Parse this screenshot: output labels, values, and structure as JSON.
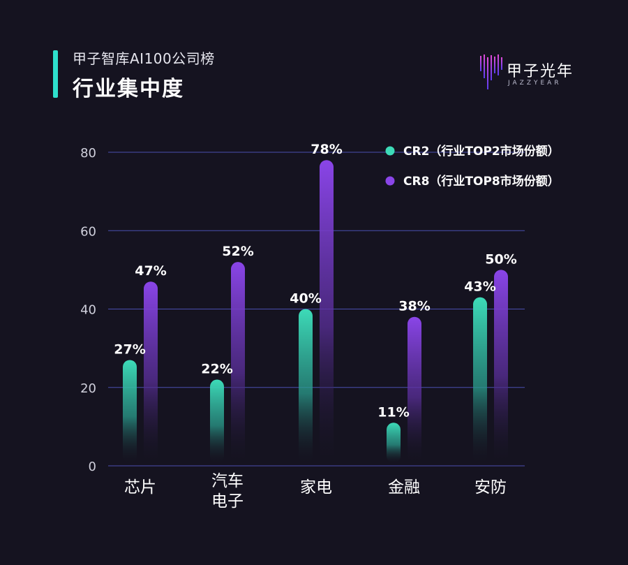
{
  "header": {
    "subtitle": "甲子智库AI100公司榜",
    "title": "行业集中度"
  },
  "logo": {
    "name": "甲子光年",
    "sub": "JAZZYEAR"
  },
  "colors": {
    "background": "#151320",
    "accent": "#2ee0cc",
    "cr2": "#3ddbb8",
    "cr8": "#8a45e8",
    "grid": "#4a4fb0"
  },
  "chart_data": {
    "type": "bar",
    "categories": [
      [
        "芯片"
      ],
      [
        "汽车",
        "电子"
      ],
      [
        "家电"
      ],
      [
        "金融"
      ],
      [
        "安防"
      ]
    ],
    "series": [
      {
        "name": "CR2（行业TOP2市场份额）",
        "values": [
          27,
          22,
          40,
          11,
          43
        ],
        "labels": [
          "27%",
          "22%",
          "40%",
          "11%",
          "43%"
        ],
        "color": "#3ddbb8"
      },
      {
        "name": "CR8（行业TOP8市场份额）",
        "values": [
          47,
          52,
          78,
          38,
          50
        ],
        "labels": [
          "47%",
          "52%",
          "78%",
          "38%",
          "50%"
        ],
        "color": "#8a45e8"
      }
    ],
    "yticks": [
      0,
      20,
      40,
      60,
      80
    ],
    "ylim": [
      0,
      80
    ],
    "grid": true,
    "legend_position": "top-right",
    "xlabel": "",
    "ylabel": ""
  }
}
